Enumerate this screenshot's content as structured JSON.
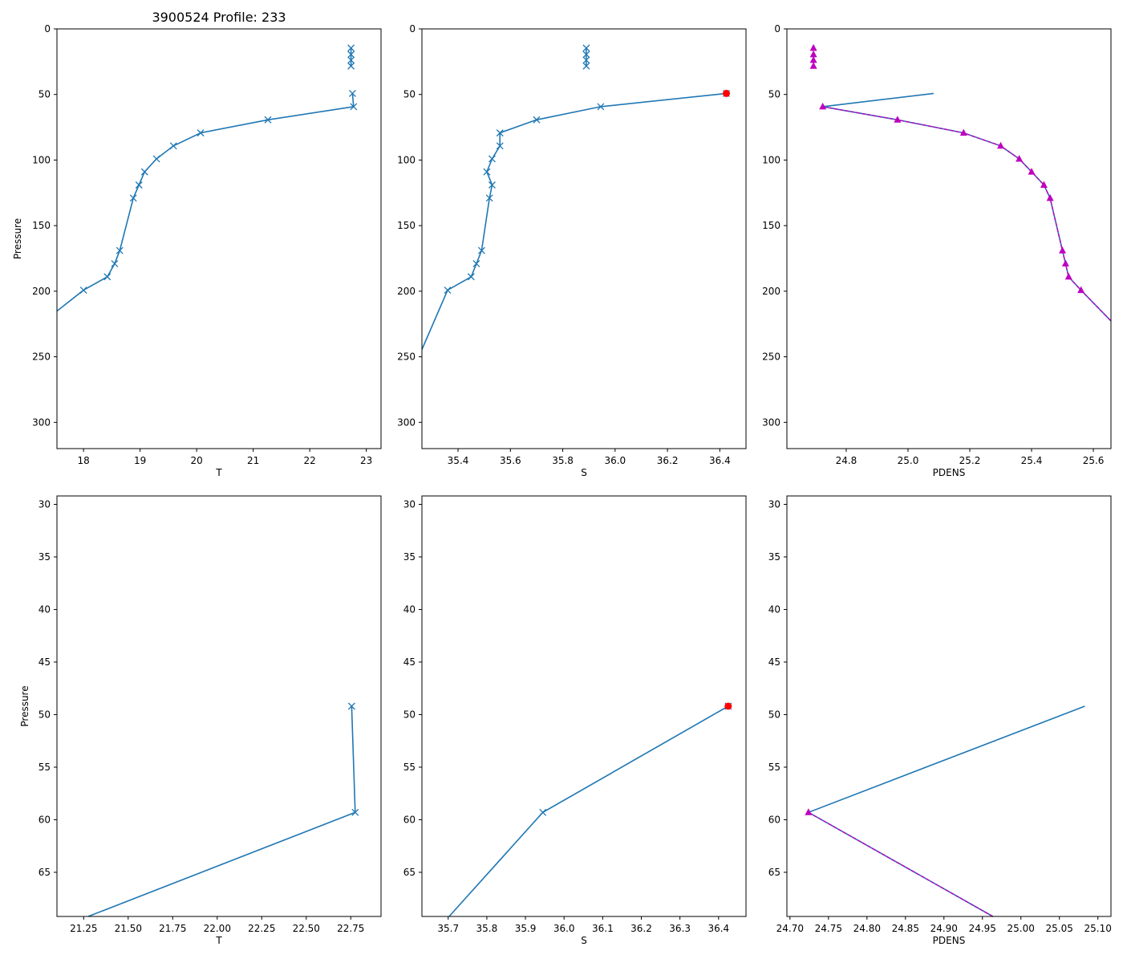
{
  "chart_data": {
    "type": "line",
    "title": "3900524 Profile: 233",
    "colors": {
      "line": "#1f77b4",
      "bad": "#ff0000",
      "filtered": "#bf00bf"
    },
    "profile": {
      "pressure": [
        14.6,
        19.5,
        23.8,
        28.3,
        49.2,
        59.3,
        69.3,
        79.3,
        89.2,
        99.1,
        109.0,
        119.0,
        129.0,
        169.0,
        179.0,
        189.0,
        199.2,
        250.0
      ],
      "T": [
        22.73,
        22.73,
        22.73,
        22.73,
        22.755,
        22.775,
        21.26,
        20.07,
        19.59,
        19.29,
        19.08,
        18.98,
        18.88,
        18.64,
        18.55,
        18.42,
        18.0,
        16.5
      ],
      "S": [
        35.89,
        35.89,
        35.89,
        35.89,
        36.425,
        35.945,
        35.7,
        35.56,
        35.56,
        35.53,
        35.51,
        35.53,
        35.52,
        35.49,
        35.47,
        35.45,
        35.36,
        35.25
      ],
      "PDENS": [
        24.694,
        24.694,
        24.694,
        24.694,
        25.083,
        24.724,
        24.966,
        25.18,
        25.3,
        25.36,
        25.4,
        25.44,
        25.46,
        25.5,
        25.51,
        25.52,
        25.56,
        25.77
      ],
      "segment_break_after_index": 3,
      "bad_salinity_index": 4
    },
    "panels": [
      {
        "var": "T",
        "xlabel": "T",
        "ylabel": "Pressure",
        "xlim": [
          17.53,
          23.26
        ],
        "ylim": [
          320,
          0
        ],
        "xticks": [
          "18",
          "19",
          "20",
          "21",
          "22",
          "23"
        ],
        "yticks": [
          "0",
          "50",
          "100",
          "150",
          "200",
          "250",
          "300"
        ]
      },
      {
        "var": "S",
        "xlabel": "S",
        "ylabel": "",
        "xlim": [
          35.262,
          36.5
        ],
        "ylim": [
          320,
          0
        ],
        "xticks": [
          "35.4",
          "35.6",
          "35.8",
          "36.0",
          "36.2",
          "36.4"
        ],
        "yticks": [
          "0",
          "50",
          "100",
          "150",
          "200",
          "250",
          "300"
        ]
      },
      {
        "var": "PDENS",
        "xlabel": "PDENS",
        "ylabel": "",
        "xlim": [
          24.608,
          25.657
        ],
        "ylim": [
          320,
          0
        ],
        "xticks": [
          "24.8",
          "25.0",
          "25.2",
          "25.4",
          "25.6"
        ],
        "yticks": [
          "0",
          "50",
          "100",
          "150",
          "200",
          "250",
          "300"
        ]
      },
      {
        "var": "T",
        "xlabel": "T",
        "ylabel": "Pressure",
        "xlim": [
          21.1,
          22.92
        ],
        "ylim": [
          69.2,
          29.2
        ],
        "xticks": [
          "21.25",
          "21.50",
          "21.75",
          "22.00",
          "22.25",
          "22.50",
          "22.75"
        ],
        "yticks": [
          "30",
          "35",
          "40",
          "45",
          "50",
          "55",
          "60",
          "65"
        ]
      },
      {
        "var": "S",
        "xlabel": "S",
        "ylabel": "",
        "xlim": [
          35.632,
          36.471
        ],
        "ylim": [
          69.2,
          29.2
        ],
        "xticks": [
          "35.7",
          "35.8",
          "35.9",
          "36.0",
          "36.1",
          "36.2",
          "36.3",
          "36.4"
        ],
        "yticks": [
          "30",
          "35",
          "40",
          "45",
          "50",
          "55",
          "60",
          "65"
        ]
      },
      {
        "var": "PDENS",
        "xlabel": "PDENS",
        "ylabel": "",
        "xlim": [
          24.696,
          25.117
        ],
        "ylim": [
          69.2,
          29.2
        ],
        "xticks": [
          "24.70",
          "24.75",
          "24.80",
          "24.85",
          "24.90",
          "24.95",
          "25.00",
          "25.05",
          "25.10"
        ],
        "yticks": [
          "30",
          "35",
          "40",
          "45",
          "50",
          "55",
          "60",
          "65"
        ]
      }
    ]
  }
}
